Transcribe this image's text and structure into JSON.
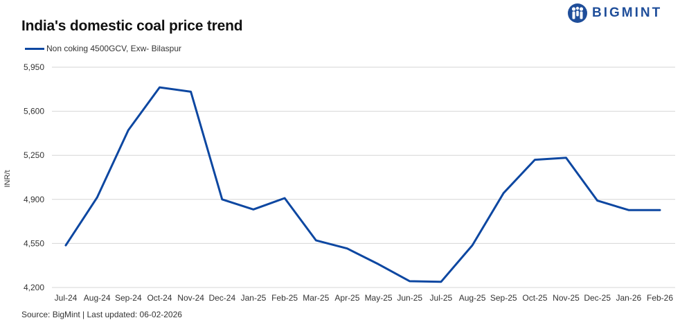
{
  "brand": {
    "name": "BIGMINT",
    "color": "#1f4e9a",
    "icon": "people-logo-icon"
  },
  "footer": {
    "source": "Source: BigMint | Last updated: 06-02-2026"
  },
  "chart_data": {
    "type": "line",
    "title": "India's domestic coal price trend",
    "ylabel": "INR/t",
    "xlabel": "",
    "categories": [
      "Jul-24",
      "Aug-24",
      "Sep-24",
      "Oct-24",
      "Nov-24",
      "Dec-24",
      "Jan-25",
      "Feb-25",
      "Mar-25",
      "Apr-25",
      "May-25",
      "Jun-25",
      "Jul-25",
      "Aug-25",
      "Sep-25",
      "Oct-25",
      "Nov-25",
      "Dec-25",
      "Jan-26",
      "Feb-26"
    ],
    "series": [
      {
        "name": "Non coking 4500GCV, Exw- Bilaspur",
        "color": "#0d47a1",
        "values": [
          4535,
          4915,
          5450,
          5790,
          5755,
          4900,
          4820,
          4910,
          4575,
          4510,
          4385,
          4250,
          4245,
          4535,
          4950,
          5215,
          5230,
          4890,
          4815,
          4815
        ]
      }
    ],
    "ylim": [
      4200,
      5950
    ],
    "yticks": [
      4200,
      4550,
      4900,
      5250,
      5600,
      5950
    ],
    "ytick_labels": [
      "4,200",
      "4,550",
      "4,900",
      "5,250",
      "5,600",
      "5,950"
    ],
    "grid": true,
    "legend": "top-left"
  }
}
